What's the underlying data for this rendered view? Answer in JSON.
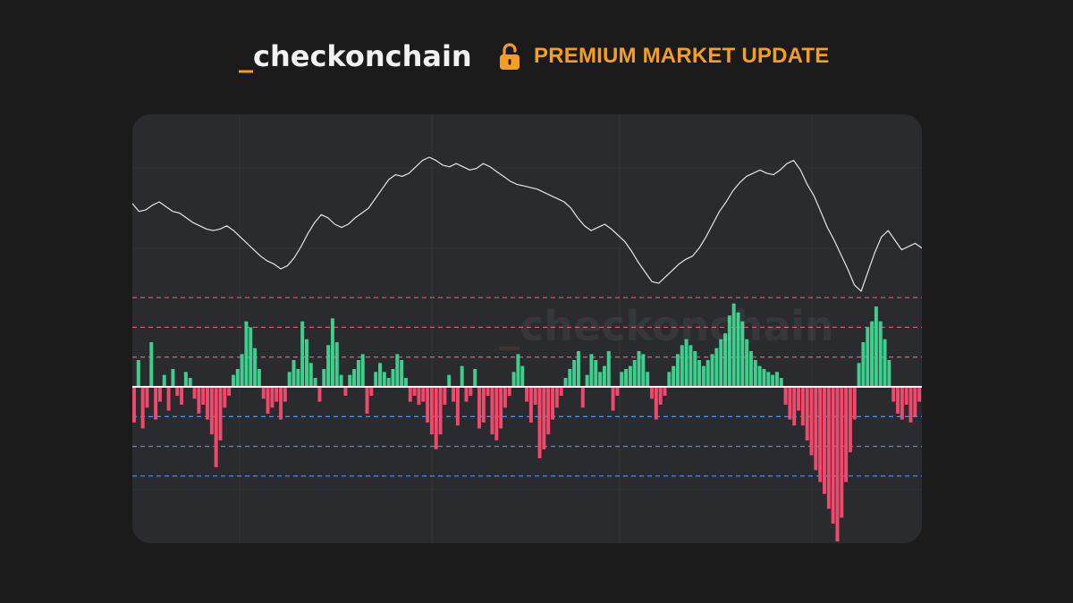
{
  "header": {
    "brand_prefix": "_",
    "brand_name": "checkonchain",
    "premium_label": "PREMIUM MARKET UPDATE",
    "lock_icon": "lock-open-icon",
    "accent_color": "#f59e20"
  },
  "watermark": {
    "prefix": "_",
    "text": "checkonchain"
  },
  "chart_data": [
    {
      "type": "line",
      "title": "",
      "xlabel": "",
      "ylabel": "",
      "grid": true,
      "series": [
        {
          "color": "#e6e6e6",
          "values": [
            61,
            56,
            57,
            60,
            62,
            59,
            56,
            55,
            52,
            49,
            47,
            45,
            44,
            45,
            47,
            44,
            40,
            36,
            32,
            28,
            25,
            23,
            20,
            22,
            27,
            34,
            42,
            49,
            54,
            52,
            48,
            46,
            48,
            52,
            55,
            58,
            64,
            70,
            76,
            79,
            78,
            80,
            84,
            88,
            90,
            88,
            85,
            84,
            86,
            84,
            82,
            83,
            86,
            84,
            81,
            78,
            75,
            73,
            72,
            71,
            70,
            68,
            66,
            64,
            62,
            58,
            52,
            47,
            44,
            46,
            48,
            45,
            41,
            37,
            31,
            24,
            18,
            12,
            11,
            15,
            19,
            23,
            26,
            28,
            33,
            40,
            48,
            56,
            62,
            69,
            74,
            78,
            80,
            82,
            80,
            79,
            82,
            86,
            88,
            82,
            73,
            66,
            56,
            46,
            38,
            29,
            20,
            10,
            6,
            18,
            30,
            40,
            44,
            38,
            32,
            34,
            36,
            33
          ]
        }
      ]
    },
    {
      "type": "bar",
      "title": "",
      "xlabel": "",
      "ylabel": "",
      "ylim": [
        -5.2,
        4.2
      ],
      "reference_lines": [
        3,
        2,
        1,
        -1,
        -2,
        -3
      ],
      "baseline_color": "#ffffff",
      "series": [
        {
          "positive_color": "#3ecf8e",
          "negative_color": "#f0496b",
          "values": [
            -1.2,
            0.9,
            -1.4,
            -0.7,
            1.5,
            -1.1,
            -0.5,
            0.4,
            -0.8,
            0.6,
            -0.3,
            -0.6,
            0.5,
            0.3,
            -0.4,
            -0.9,
            -0.6,
            -1.1,
            -1.6,
            -2.7,
            -1.8,
            -0.7,
            -0.3,
            0.4,
            0.6,
            1.1,
            2.2,
            2.0,
            1.3,
            0.6,
            -0.4,
            -0.9,
            -0.7,
            -0.5,
            -1.1,
            -0.5,
            0.5,
            0.9,
            0.6,
            2.2,
            1.6,
            0.8,
            0.3,
            -0.5,
            0.6,
            1.4,
            2.3,
            1.5,
            0.4,
            -0.3,
            0.4,
            0.6,
            0.9,
            1.1,
            -0.9,
            -0.3,
            0.5,
            0.8,
            0.5,
            0.3,
            0.6,
            1.1,
            0.9,
            0.3,
            -0.5,
            -0.3,
            -0.6,
            -0.5,
            -1.2,
            -1.6,
            -2.1,
            -1.6,
            -0.6,
            0.4,
            -0.5,
            -1.3,
            0.7,
            -0.5,
            -0.3,
            0.6,
            -1.4,
            -1.2,
            -0.3,
            -1.6,
            -1.8,
            -1.4,
            -0.7,
            -0.3,
            0.5,
            1.1,
            0.7,
            -0.5,
            -1.2,
            -0.6,
            -2.4,
            -2.1,
            -1.6,
            -1.1,
            -0.7,
            -0.3,
            0.3,
            0.6,
            0.9,
            1.2,
            -0.7,
            0.4,
            1.1,
            0.9,
            0.5,
            0.7,
            1.2,
            -0.8,
            -0.3,
            0.5,
            0.6,
            0.7,
            0.9,
            1.2,
            1.1,
            0.5,
            -0.4,
            -1.1,
            -0.6,
            -0.3,
            0.5,
            0.7,
            1.1,
            1.4,
            1.6,
            1.4,
            1.2,
            0.9,
            0.7,
            0.9,
            1.1,
            1.3,
            1.6,
            1.8,
            2.4,
            2.8,
            2.5,
            2.2,
            1.6,
            1.2,
            0.9,
            0.7,
            0.6,
            0.5,
            0.4,
            0.5,
            0.3,
            -0.6,
            -1.1,
            -1.3,
            -0.8,
            -1.3,
            -1.8,
            -2.3,
            -2.8,
            -3.2,
            -3.6,
            -4.1,
            -4.6,
            -5.2,
            -4.4,
            -3.2,
            -2.2,
            -1.1,
            0.8,
            1.5,
            2.0,
            2.2,
            2.7,
            2.2,
            1.6,
            0.9,
            -0.5,
            -0.9,
            -1.1,
            -0.6,
            -1.2,
            -1.0,
            -0.5
          ]
        }
      ]
    }
  ]
}
